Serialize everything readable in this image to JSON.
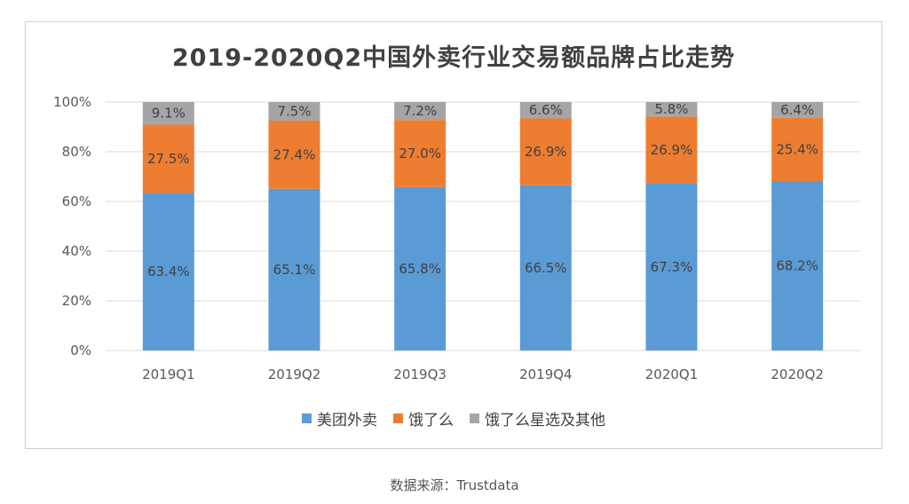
{
  "chart_data": {
    "type": "bar",
    "stacked": true,
    "title": "2019-2020Q2中国外卖行业交易额品牌占比走势",
    "categories": [
      "2019Q1",
      "2019Q2",
      "2019Q3",
      "2019Q4",
      "2020Q1",
      "2020Q2"
    ],
    "series": [
      {
        "name": "美团外卖",
        "color": "#5b9bd5",
        "values": [
          63.4,
          65.1,
          65.8,
          66.5,
          67.3,
          68.2
        ],
        "labels": [
          "63.4%",
          "65.1%",
          "65.8%",
          "66.5%",
          "67.3%",
          "68.2%"
        ]
      },
      {
        "name": "饿了么",
        "color": "#ed7d31",
        "values": [
          27.5,
          27.4,
          27.0,
          26.9,
          26.9,
          25.4
        ],
        "labels": [
          "27.5%",
          "27.4%",
          "27.0%",
          "26.9%",
          "26.9%",
          "25.4%"
        ]
      },
      {
        "name": "饿了么星选及其他",
        "color": "#a5a5a5",
        "values": [
          9.1,
          7.5,
          7.2,
          6.6,
          5.8,
          6.4
        ],
        "labels": [
          "9.1%",
          "7.5%",
          "7.2%",
          "6.6%",
          "5.8%",
          "6.4%"
        ]
      }
    ],
    "y_ticks": [
      "0%",
      "20%",
      "40%",
      "60%",
      "80%",
      "100%"
    ],
    "ylim": [
      0,
      100
    ],
    "grid": true,
    "legend_position": "bottom"
  },
  "source": "数据来源：Trustdata"
}
